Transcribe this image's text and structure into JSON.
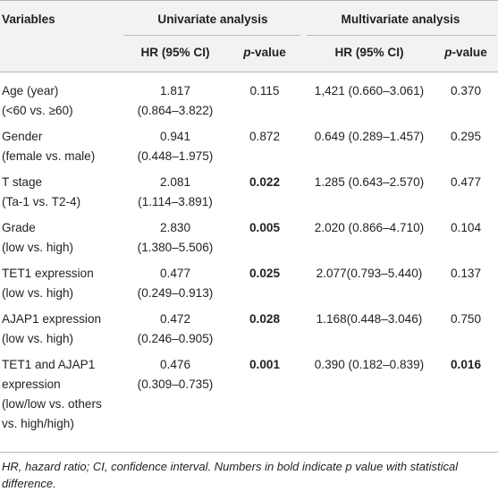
{
  "header": {
    "variables": "Variables",
    "univariate": "Univariate analysis",
    "multivariate": "Multivariate analysis",
    "hr": "HR (95% CI)",
    "p_italic": "p",
    "p_rest": "-value"
  },
  "rows": [
    {
      "var1": "Age (year)",
      "var2": "(<60 vs. ≥60)",
      "uhr1": "1.817",
      "uhr2": "(0.864–3.822)",
      "up": "0.115",
      "up_bold": false,
      "mhr": "1,421 (0.660–3.061)",
      "mp": "0.370",
      "mp_bold": false
    },
    {
      "var1": "Gender",
      "var2": "(female vs. male)",
      "uhr1": "0.941",
      "uhr2": "(0.448–1.975)",
      "up": "0.872",
      "up_bold": false,
      "mhr": "0.649 (0.289–1.457)",
      "mp": "0.295",
      "mp_bold": false
    },
    {
      "var1": "T stage",
      "var2": "(Ta-1 vs. T2-4)",
      "uhr1": "2.081",
      "uhr2": "(1.114–3.891)",
      "up": "0.022",
      "up_bold": true,
      "mhr": "1.285 (0.643–2.570)",
      "mp": "0.477",
      "mp_bold": false
    },
    {
      "var1": "Grade",
      "var2": "(low vs. high)",
      "uhr1": "2.830",
      "uhr2": "(1.380–5.506)",
      "up": "0.005",
      "up_bold": true,
      "mhr": "2.020 (0.866–4.710)",
      "mp": "0.104",
      "mp_bold": false
    },
    {
      "var1": "TET1 expression",
      "var2": "(low vs. high)",
      "uhr1": "0.477",
      "uhr2": "(0.249–0.913)",
      "up": "0.025",
      "up_bold": true,
      "mhr": "2.077(0.793–5.440)",
      "mp": "0.137",
      "mp_bold": false
    },
    {
      "var1": "AJAP1 expression",
      "var2": "(low vs. high)",
      "uhr1": "0.472",
      "uhr2": "(0.246–0.905)",
      "up": "0.028",
      "up_bold": true,
      "mhr": "1.168(0.448–3.046)",
      "mp": "0.750",
      "mp_bold": false
    },
    {
      "var1": "TET1 and AJAP1",
      "var2": "expression",
      "var3": "(low/low vs. others",
      "var4": "vs. high/high)",
      "uhr1": "0.476",
      "uhr2": "(0.309–0.735)",
      "up": "0.001",
      "up_bold": true,
      "mhr": "0.390 (0.182–0.839)",
      "mp": "0.016",
      "mp_bold": true
    }
  ],
  "footnote": "HR, hazard ratio; CI, confidence interval. Numbers in bold indicate p value with statistical difference."
}
